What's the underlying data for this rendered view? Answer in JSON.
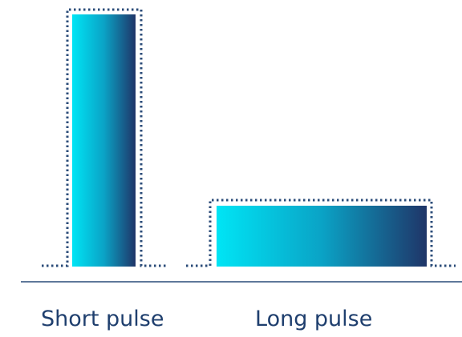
{
  "colors": {
    "gradient_start": "#00e5f5",
    "gradient_mid": "#0aa3c6",
    "gradient_end": "#1f3568",
    "outline": "#2a4b78",
    "baseline": "#2a4b78",
    "label": "#1f3f6e"
  },
  "pulses": [
    {
      "label": "Short pulse",
      "duration": "short",
      "relative_height": 1.0
    },
    {
      "label": "Long pulse",
      "duration": "long",
      "relative_height": 0.24
    }
  ]
}
